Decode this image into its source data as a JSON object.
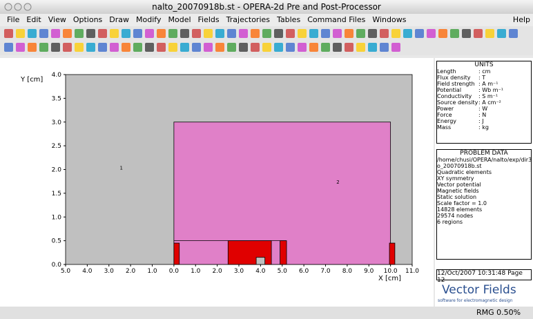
{
  "window": {
    "title": "nalto_20070918b.st - OPERA-2d Pre and Post-Processor"
  },
  "menu": {
    "items": [
      "File",
      "Edit",
      "View",
      "Options",
      "Draw",
      "Modify",
      "Model",
      "Fields",
      "Trajectories",
      "Tables",
      "Command Files",
      "Windows"
    ],
    "help": "Help"
  },
  "plot": {
    "y_label": "Y [cm]",
    "x_label": "X [cm]",
    "xlim": [
      -5,
      11
    ],
    "ylim": [
      0,
      4
    ],
    "xticks": [
      {
        "value": -5,
        "label": "5.0"
      },
      {
        "value": -4,
        "label": "4.0"
      },
      {
        "value": -3,
        "label": "3.0"
      },
      {
        "value": -2,
        "label": "2.0"
      },
      {
        "value": -1,
        "label": "1.0"
      },
      {
        "value": 0,
        "label": "0.0"
      },
      {
        "value": 1,
        "label": "1.0"
      },
      {
        "value": 2,
        "label": "2.0"
      },
      {
        "value": 3,
        "label": "3.0"
      },
      {
        "value": 4,
        "label": "4.0"
      },
      {
        "value": 5,
        "label": "5.0"
      },
      {
        "value": 6,
        "label": "6.0"
      },
      {
        "value": 7,
        "label": "7.0"
      },
      {
        "value": 8,
        "label": "8.0"
      },
      {
        "value": 9,
        "label": "9.0"
      },
      {
        "value": 10,
        "label": "10.0"
      },
      {
        "value": 11,
        "label": "11.0"
      }
    ],
    "yticks": [
      {
        "value": 0,
        "label": "0.0"
      },
      0.5,
      {
        "value": 1,
        "label": "1.0"
      },
      1.5,
      {
        "value": 2,
        "label": "2.0"
      },
      2.5,
      {
        "value": 3,
        "label": "3.0"
      },
      3.5,
      {
        "value": 4,
        "label": "4.0"
      }
    ],
    "regions": [
      {
        "color": "#c0c0c0",
        "x": [
          -5,
          11
        ],
        "y": [
          0,
          4
        ]
      },
      {
        "color": "#e080c8",
        "x": [
          0,
          10
        ],
        "y": [
          0,
          3
        ]
      },
      {
        "color": "#e00000",
        "x": [
          2.5,
          4.5
        ],
        "y": [
          0,
          0.5
        ]
      },
      {
        "color": "#e00000",
        "x": [
          4.9,
          5.2
        ],
        "y": [
          0,
          0.5
        ]
      },
      {
        "color": "#e00000",
        "x": [
          0,
          0.25
        ],
        "y": [
          0,
          0.45
        ]
      },
      {
        "color": "#e00000",
        "x": [
          9.95,
          10.2
        ],
        "y": [
          0,
          0.45
        ]
      },
      {
        "color": "#c0c0c0",
        "x": [
          3.8,
          4.2
        ],
        "y": [
          0,
          0.15
        ]
      }
    ],
    "boundary_line": {
      "x": [
        0,
        5.2
      ],
      "y": [
        0.5,
        0.5
      ]
    },
    "region_labels": [
      {
        "text": "1",
        "x": -2.5,
        "y": 2.0
      },
      {
        "text": "2",
        "x": 7.5,
        "y": 1.7
      }
    ]
  },
  "units": {
    "title": "UNITS",
    "rows": [
      [
        "Length",
        ": cm"
      ],
      [
        "Flux density",
        ": T"
      ],
      [
        "Field strength",
        ": A m⁻¹"
      ],
      [
        "Potential",
        ": Wb m⁻¹"
      ],
      [
        "Conductivity",
        ": S m⁻¹"
      ],
      [
        "Source density",
        ": A cm⁻²"
      ],
      [
        "Power",
        ": W"
      ],
      [
        "Force",
        ": N"
      ],
      [
        "Energy",
        ": J"
      ],
      [
        "Mass",
        ": kg"
      ]
    ]
  },
  "problem_data": {
    "title": "PROBLEM DATA",
    "lines": [
      "/home/chusi/OPERA/nalto/exp/dir3/nalt",
      "o_20070918b.st",
      "Quadratic elements",
      "XY symmetry",
      "Vector potential",
      "Magnetic fields",
      "Static solution",
      "Scale factor = 1.0",
      "14828 elements",
      "29574 nodes",
      "6 regions"
    ]
  },
  "footer": {
    "date": "12/Oct/2007 10:31:48 Page 12",
    "logo": "Vector Fields",
    "tagline": "software for electromagnetic design"
  },
  "status": {
    "text": "RMG 0.50%"
  }
}
